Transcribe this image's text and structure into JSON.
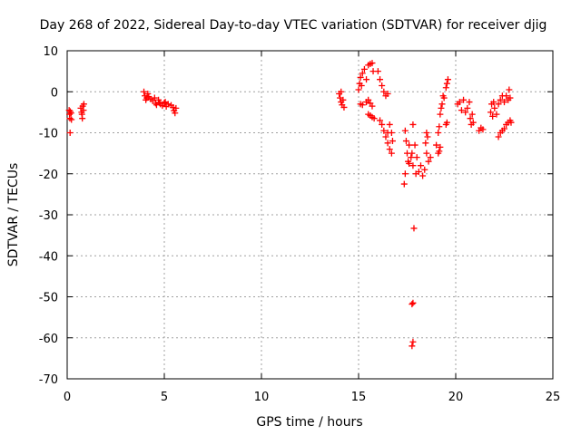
{
  "chart_data": {
    "type": "scatter",
    "title": "Day 268 of 2022, Sidereal Day-to-day VTEC variation (SDTVAR) for receiver djig",
    "xlabel": "GPS time / hours",
    "ylabel": "SDTVAR / TECUs",
    "xlim": [
      0,
      25
    ],
    "ylim": [
      -70,
      10
    ],
    "xticks": [
      0,
      5,
      10,
      15,
      20,
      25
    ],
    "yticks": [
      10,
      0,
      -10,
      -20,
      -30,
      -40,
      -50,
      -60,
      -70
    ],
    "grid": true,
    "marker": "+",
    "series_color": "#ff0000",
    "series": [
      {
        "name": "SDTVAR",
        "points": [
          [
            0.1,
            -4.5
          ],
          [
            0.12,
            -5.5
          ],
          [
            0.14,
            -6.5
          ],
          [
            0.16,
            -4.8
          ],
          [
            0.2,
            -5.2
          ],
          [
            0.22,
            -6.8
          ],
          [
            0.15,
            -10
          ],
          [
            0.7,
            -4
          ],
          [
            0.74,
            -5
          ],
          [
            0.78,
            -6.5
          ],
          [
            0.8,
            -3.5
          ],
          [
            0.84,
            -4.5
          ],
          [
            0.86,
            -3
          ],
          [
            0.76,
            -5.5
          ],
          [
            3.95,
            0
          ],
          [
            4.0,
            -1
          ],
          [
            4.05,
            -2
          ],
          [
            4.1,
            -1.5
          ],
          [
            4.15,
            -0.5
          ],
          [
            4.2,
            -1.2
          ],
          [
            4.3,
            -1.8
          ],
          [
            4.4,
            -2.2
          ],
          [
            4.5,
            -1.5
          ],
          [
            4.55,
            -2.8
          ],
          [
            4.6,
            -3.2
          ],
          [
            4.7,
            -2
          ],
          [
            4.75,
            -2.6
          ],
          [
            4.8,
            -3
          ],
          [
            4.9,
            -3.4
          ],
          [
            5.0,
            -2.7
          ],
          [
            5.05,
            -2.5
          ],
          [
            5.1,
            -3.6
          ],
          [
            5.2,
            -3
          ],
          [
            5.35,
            -3.3
          ],
          [
            5.45,
            -3.8
          ],
          [
            5.5,
            -4.6
          ],
          [
            5.55,
            -5.2
          ],
          [
            5.6,
            -4
          ],
          [
            14.0,
            -0.5
          ],
          [
            14.05,
            -1.5
          ],
          [
            14.1,
            -2.5
          ],
          [
            14.15,
            -3.2
          ],
          [
            14.2,
            -2
          ],
          [
            14.25,
            -3.8
          ],
          [
            14.1,
            0
          ],
          [
            15.0,
            0.5
          ],
          [
            15.05,
            2
          ],
          [
            15.1,
            3.5
          ],
          [
            15.15,
            1.5
          ],
          [
            15.2,
            4.5
          ],
          [
            15.3,
            5.5
          ],
          [
            15.4,
            3
          ],
          [
            15.5,
            6.5
          ],
          [
            15.6,
            6.8
          ],
          [
            15.7,
            7
          ],
          [
            15.75,
            5
          ],
          [
            15.4,
            -2.5
          ],
          [
            15.5,
            -2
          ],
          [
            15.6,
            -2.8
          ],
          [
            15.7,
            -3.5
          ],
          [
            15.5,
            -5.5
          ],
          [
            15.6,
            -5.8
          ],
          [
            15.7,
            -6.2
          ],
          [
            15.8,
            -6.5
          ],
          [
            15.1,
            -3
          ],
          [
            15.2,
            -3.2
          ],
          [
            16.0,
            5
          ],
          [
            16.1,
            3
          ],
          [
            16.2,
            1.5
          ],
          [
            16.3,
            0
          ],
          [
            16.4,
            -1
          ],
          [
            16.5,
            -0.5
          ],
          [
            16.1,
            -7
          ],
          [
            16.2,
            -8
          ],
          [
            16.3,
            -9.5
          ],
          [
            16.4,
            -11
          ],
          [
            16.5,
            -12.5
          ],
          [
            16.6,
            -14
          ],
          [
            16.7,
            -15
          ],
          [
            16.5,
            -10
          ],
          [
            16.6,
            -8
          ],
          [
            16.7,
            -10
          ],
          [
            16.75,
            -12
          ],
          [
            17.4,
            -9.5
          ],
          [
            17.45,
            -12
          ],
          [
            17.5,
            -15
          ],
          [
            17.55,
            -17
          ],
          [
            17.6,
            -13
          ],
          [
            17.4,
            -20
          ],
          [
            17.35,
            -22.5
          ],
          [
            17.6,
            -17.5
          ],
          [
            17.7,
            -16
          ],
          [
            17.75,
            -15
          ],
          [
            17.8,
            -18
          ],
          [
            17.9,
            -13
          ],
          [
            17.95,
            -20
          ],
          [
            18.0,
            -16
          ],
          [
            17.8,
            -8
          ],
          [
            17.85,
            -33.3
          ],
          [
            17.8,
            -51.5
          ],
          [
            17.75,
            -51.8
          ],
          [
            17.8,
            -61
          ],
          [
            17.75,
            -62
          ],
          [
            18.1,
            -19.5
          ],
          [
            18.2,
            -18
          ],
          [
            18.3,
            -20.5
          ],
          [
            18.4,
            -19
          ],
          [
            18.5,
            -15
          ],
          [
            18.45,
            -12.5
          ],
          [
            18.55,
            -11
          ],
          [
            18.5,
            -10
          ],
          [
            18.6,
            -17
          ],
          [
            18.7,
            -16
          ],
          [
            19.0,
            -13
          ],
          [
            19.1,
            -10
          ],
          [
            19.15,
            -8.5
          ],
          [
            19.2,
            -5.5
          ],
          [
            19.25,
            -4
          ],
          [
            19.3,
            -3
          ],
          [
            19.35,
            -1
          ],
          [
            19.4,
            -1.5
          ],
          [
            19.5,
            1
          ],
          [
            19.55,
            2
          ],
          [
            19.6,
            3
          ],
          [
            19.1,
            -15
          ],
          [
            19.15,
            -14.5
          ],
          [
            19.2,
            -13.5
          ],
          [
            19.55,
            -7.5
          ],
          [
            19.5,
            -8
          ],
          [
            20.1,
            -3
          ],
          [
            20.2,
            -2.5
          ],
          [
            20.3,
            -4.5
          ],
          [
            20.4,
            -2
          ],
          [
            20.5,
            -5
          ],
          [
            20.6,
            -4
          ],
          [
            20.7,
            -2.5
          ],
          [
            20.75,
            -6.5
          ],
          [
            20.8,
            -8
          ],
          [
            20.85,
            -5.5
          ],
          [
            20.9,
            -7.5
          ],
          [
            21.2,
            -9.5
          ],
          [
            21.3,
            -8.8
          ],
          [
            21.4,
            -9.2
          ],
          [
            21.8,
            -5
          ],
          [
            21.85,
            -3
          ],
          [
            21.9,
            -6
          ],
          [
            21.95,
            -2.5
          ],
          [
            22.0,
            -4
          ],
          [
            22.1,
            -5.5
          ],
          [
            22.2,
            -3
          ],
          [
            22.3,
            -2
          ],
          [
            22.4,
            -1
          ],
          [
            22.5,
            -2.5
          ],
          [
            22.6,
            -1
          ],
          [
            22.7,
            -2
          ],
          [
            22.75,
            0.5
          ],
          [
            22.8,
            -1.5
          ],
          [
            22.2,
            -11
          ],
          [
            22.3,
            -10
          ],
          [
            22.4,
            -9.5
          ],
          [
            22.5,
            -9
          ],
          [
            22.6,
            -8
          ],
          [
            22.7,
            -7.5
          ],
          [
            22.8,
            -7
          ],
          [
            22.85,
            -7.5
          ]
        ]
      }
    ]
  }
}
